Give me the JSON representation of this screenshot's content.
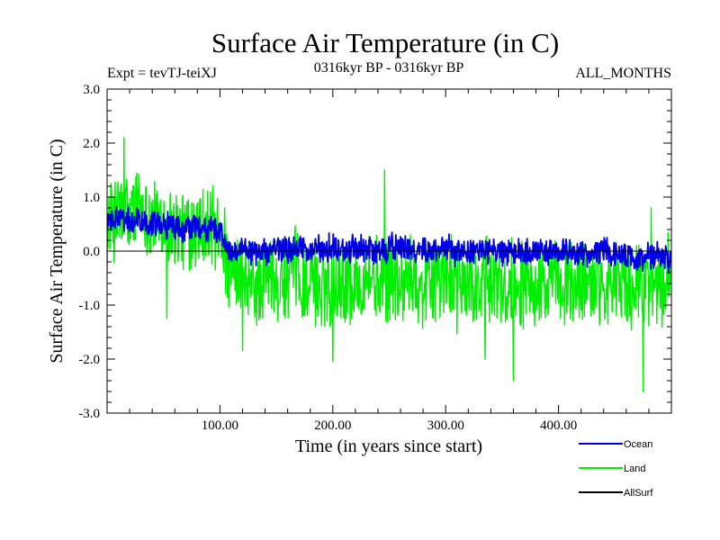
{
  "chart_data": {
    "type": "line",
    "title": "Surface Air Temperature (in C)",
    "subtitle_left": "Expt = tevTJ-teiXJ",
    "subtitle_center": "0316kyr BP - 0316kyr BP",
    "subtitle_right": "ALL_MONTHS",
    "xlabel": "Time (in years since start)",
    "ylabel": "Surface Air Temperature (in C)",
    "xlim": [
      0,
      500
    ],
    "ylim": [
      -3.0,
      3.0
    ],
    "x_ticks": [
      100,
      200,
      300,
      400
    ],
    "x_tick_labels": [
      "100.00",
      "200.00",
      "300.00",
      "400.00"
    ],
    "y_ticks": [
      -3.0,
      -2.0,
      -1.0,
      0.0,
      1.0,
      2.0,
      3.0
    ],
    "y_tick_labels": [
      "-3.0",
      "-2.0",
      "-1.0",
      "0.0",
      "1.0",
      "2.0",
      "3.0"
    ],
    "zero_line": true,
    "grid": false,
    "legend_position": "below-right",
    "series": [
      {
        "name": "Land",
        "color": "#00ee00",
        "x": [
          0,
          10,
          20,
          30,
          40,
          50,
          60,
          70,
          80,
          90,
          100,
          110,
          120,
          130,
          140,
          150,
          160,
          170,
          180,
          190,
          200,
          210,
          220,
          230,
          240,
          250,
          260,
          270,
          280,
          290,
          300,
          310,
          320,
          330,
          340,
          350,
          360,
          370,
          380,
          390,
          400,
          410,
          420,
          430,
          440,
          450,
          460,
          470,
          480,
          490,
          500
        ],
        "values": [
          0.5,
          0.7,
          0.6,
          0.9,
          0.6,
          0.4,
          0.5,
          0.3,
          0.5,
          0.4,
          0.4,
          -0.6,
          -0.5,
          -0.7,
          -0.5,
          -0.6,
          -0.5,
          -0.4,
          -0.6,
          -0.7,
          -0.5,
          -0.5,
          -0.6,
          -0.4,
          -0.6,
          -0.5,
          -0.6,
          -0.5,
          -0.6,
          -0.5,
          -0.5,
          -0.6,
          -0.6,
          -0.7,
          -0.6,
          -0.7,
          -0.6,
          -0.5,
          -0.6,
          -0.7,
          -0.6,
          -0.6,
          -0.7,
          -0.6,
          -0.5,
          -0.6,
          -0.7,
          -0.7,
          -0.6,
          -0.7,
          -0.6
        ],
        "noise_amplitude": 0.65,
        "extremes": [
          {
            "x": 15,
            "y": 2.1
          },
          {
            "x": 53,
            "y": -1.25
          },
          {
            "x": 120,
            "y": -1.85
          },
          {
            "x": 200,
            "y": -2.05
          },
          {
            "x": 246,
            "y": 1.5
          },
          {
            "x": 335,
            "y": -2.0
          },
          {
            "x": 360,
            "y": -2.4
          },
          {
            "x": 475,
            "y": -2.6
          },
          {
            "x": 482,
            "y": 0.8
          }
        ]
      },
      {
        "name": "Ocean",
        "color": "#0000e6",
        "x": [
          0,
          10,
          20,
          30,
          40,
          50,
          60,
          70,
          80,
          90,
          100,
          110,
          120,
          130,
          140,
          150,
          160,
          170,
          180,
          190,
          200,
          210,
          220,
          230,
          240,
          250,
          260,
          270,
          280,
          290,
          300,
          310,
          320,
          330,
          340,
          350,
          360,
          370,
          380,
          390,
          400,
          410,
          420,
          430,
          440,
          450,
          460,
          470,
          480,
          490,
          500
        ],
        "values": [
          0.55,
          0.6,
          0.55,
          0.6,
          0.55,
          0.5,
          0.45,
          0.4,
          0.45,
          0.4,
          0.35,
          -0.05,
          0.0,
          -0.05,
          0.0,
          0.05,
          0.0,
          0.05,
          0.0,
          0.05,
          0.05,
          0.0,
          0.05,
          0.05,
          0.0,
          0.1,
          0.05,
          0.0,
          0.05,
          0.0,
          0.05,
          0.0,
          0.0,
          -0.05,
          0.0,
          -0.05,
          -0.05,
          0.0,
          0.0,
          -0.05,
          0.0,
          0.0,
          -0.05,
          -0.05,
          0.0,
          -0.05,
          -0.1,
          -0.15,
          -0.1,
          -0.1,
          -0.15
        ],
        "noise_amplitude": 0.2
      },
      {
        "name": "AllSurf",
        "color": "#000000",
        "x": [],
        "values": []
      }
    ]
  }
}
